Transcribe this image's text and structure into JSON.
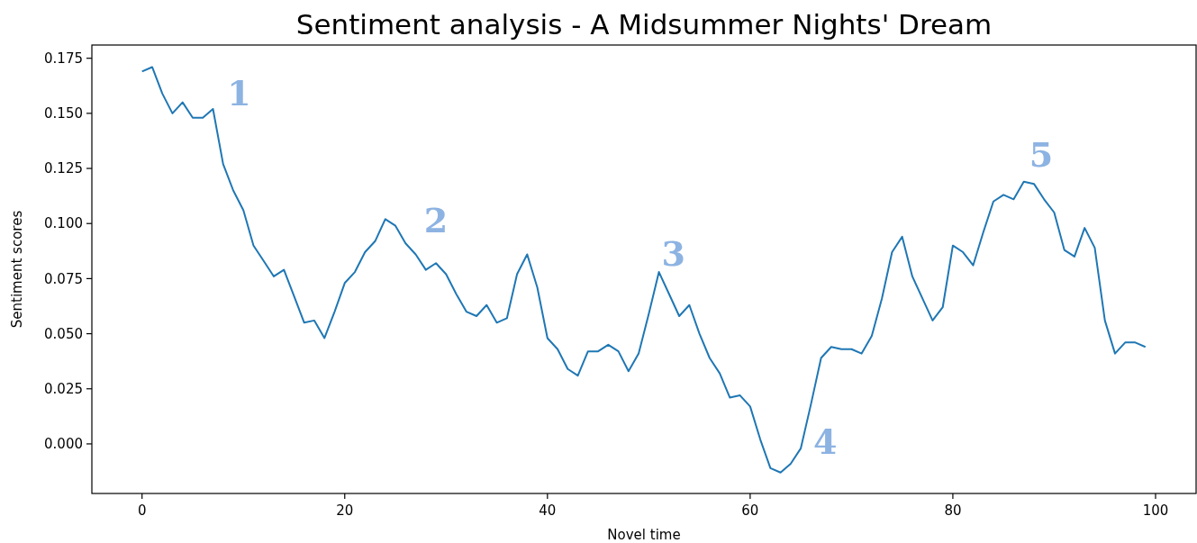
{
  "chart_data": {
    "type": "line",
    "title": "Sentiment analysis - A Midsummer Nights' Dream",
    "xlabel": "Novel time",
    "ylabel": "Sentiment scores",
    "x": [
      0,
      1,
      2,
      3,
      4,
      5,
      6,
      7,
      8,
      9,
      10,
      11,
      12,
      13,
      14,
      15,
      16,
      17,
      18,
      19,
      20,
      21,
      22,
      23,
      24,
      25,
      26,
      27,
      28,
      29,
      30,
      31,
      32,
      33,
      34,
      35,
      36,
      37,
      38,
      39,
      40,
      41,
      42,
      43,
      44,
      45,
      46,
      47,
      48,
      49,
      50,
      51,
      52,
      53,
      54,
      55,
      56,
      57,
      58,
      59,
      60,
      61,
      62,
      63,
      64,
      65,
      66,
      67,
      68,
      69,
      70,
      71,
      72,
      73,
      74,
      75,
      76,
      77,
      78,
      79,
      80,
      81,
      82,
      83,
      84,
      85,
      86,
      87,
      88,
      89,
      90,
      91,
      92,
      93,
      94,
      95,
      96,
      97,
      98,
      99
    ],
    "series": [
      {
        "color": "#1f77b4",
        "values": [
          0.169,
          0.171,
          0.159,
          0.15,
          0.155,
          0.148,
          0.148,
          0.152,
          0.127,
          0.115,
          0.106,
          0.09,
          0.083,
          0.076,
          0.079,
          0.067,
          0.055,
          0.056,
          0.048,
          0.06,
          0.073,
          0.078,
          0.087,
          0.092,
          0.102,
          0.099,
          0.091,
          0.086,
          0.079,
          0.082,
          0.077,
          0.068,
          0.06,
          0.058,
          0.063,
          0.055,
          0.057,
          0.077,
          0.086,
          0.071,
          0.048,
          0.043,
          0.034,
          0.031,
          0.042,
          0.042,
          0.045,
          0.042,
          0.033,
          0.041,
          0.059,
          0.078,
          0.068,
          0.058,
          0.063,
          0.05,
          0.039,
          0.032,
          0.021,
          0.022,
          0.017,
          0.002,
          -0.011,
          -0.013,
          -0.009,
          -0.002,
          0.018,
          0.039,
          0.044,
          0.043,
          0.043,
          0.041,
          0.049,
          0.066,
          0.087,
          0.094,
          0.076,
          0.066,
          0.056,
          0.062,
          0.09,
          0.087,
          0.081,
          0.096,
          0.11,
          0.113,
          0.111,
          0.119,
          0.118,
          0.111,
          0.105,
          0.088,
          0.085,
          0.098,
          0.089,
          0.056,
          0.041,
          0.046,
          0.046,
          0.044
        ]
      }
    ],
    "xlim": [
      -4.95,
      104
    ],
    "xticks": [
      0,
      20,
      40,
      60,
      80,
      100
    ],
    "ylim": [
      -0.0225,
      0.181
    ],
    "yticks": [
      {
        "value": 0,
        "label": "0.000"
      },
      {
        "value": 0.025,
        "label": "0.025"
      },
      {
        "value": 0.05,
        "label": "0.050"
      },
      {
        "value": 0.075,
        "label": "0.075"
      },
      {
        "value": 0.1,
        "label": "0.100"
      },
      {
        "value": 0.125,
        "label": "0.125"
      },
      {
        "value": 0.15,
        "label": "0.150"
      },
      {
        "value": 0.175,
        "label": "0.175"
      }
    ],
    "annotations": [
      {
        "text": "1",
        "x": 7,
        "y": 0.152
      },
      {
        "text": "2",
        "x": 29,
        "y": 0.082
      },
      {
        "text": "3",
        "x": 52,
        "y": 0.068
      },
      {
        "text": "4",
        "x": 65,
        "y": -0.002
      },
      {
        "text": "5",
        "x": 88,
        "y": 0.118
      }
    ],
    "grid": false,
    "marker": "none",
    "line_style": "solid"
  }
}
